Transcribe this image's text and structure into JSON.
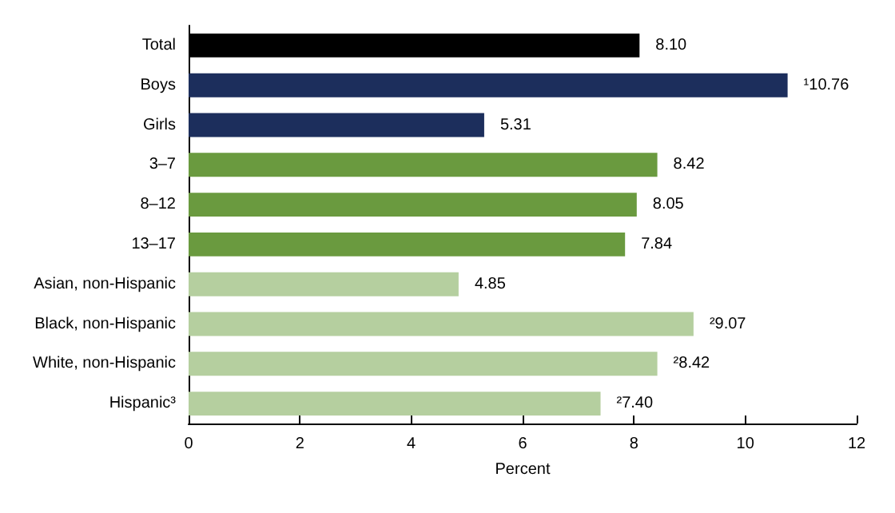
{
  "chart_data": {
    "type": "bar",
    "orientation": "horizontal",
    "xlabel": "Percent",
    "categories": [
      "Total",
      "Boys",
      "Girls",
      "3–7",
      "8–12",
      "13–17",
      "Asian, non-Hispanic",
      "Black, non-Hispanic",
      "White, non-Hispanic",
      "Hispanic³"
    ],
    "values": [
      8.1,
      10.76,
      5.31,
      8.42,
      8.05,
      7.84,
      4.85,
      9.07,
      8.42,
      7.4
    ],
    "colors": [
      "#000000",
      "#1c2e5c",
      "#1c2e5c",
      "#6a9a3f",
      "#6a9a3f",
      "#6a9a3f",
      "#b5cf9f",
      "#b5cf9f",
      "#b5cf9f",
      "#b5cf9f"
    ],
    "value_labels": [
      "8.10",
      "¹10.76",
      "5.31",
      "8.42",
      "8.05",
      "7.84",
      "4.85",
      "²9.07",
      "²8.42",
      "²7.40"
    ],
    "xlim": [
      0,
      12
    ],
    "xticks": [
      0,
      2,
      4,
      6,
      8,
      10,
      12
    ],
    "grid": false
  }
}
